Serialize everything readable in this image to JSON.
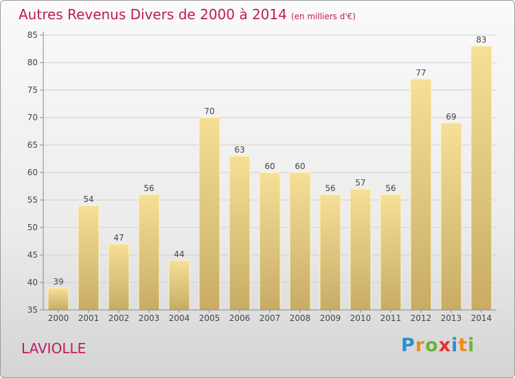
{
  "header": {
    "title": "Autres Revenus Divers de 2000 à 2014",
    "unit": "(en milliers d'€)"
  },
  "footer": {
    "place": "LAVIOLLE",
    "logo_letters": [
      "P",
      "r",
      "o",
      "x",
      "i",
      "t",
      "i"
    ],
    "logo_colors": [
      "#2a8fd4",
      "#f08a1c",
      "#6bb33a",
      "#e52e2e",
      "#2a8fd4",
      "#f08a1c",
      "#6bb33a"
    ]
  },
  "chart_data": {
    "type": "bar",
    "title": "Autres Revenus Divers de 2000 à 2014",
    "xlabel": "",
    "ylabel": "",
    "categories": [
      "2000",
      "2001",
      "2002",
      "2003",
      "2004",
      "2005",
      "2006",
      "2007",
      "2008",
      "2009",
      "2010",
      "2011",
      "2012",
      "2013",
      "2014"
    ],
    "values": [
      39,
      54,
      47,
      56,
      44,
      70,
      63,
      60,
      60,
      56,
      57,
      56,
      77,
      69,
      83
    ],
    "ylim": [
      35,
      85
    ],
    "yticks": [
      35,
      40,
      45,
      50,
      55,
      60,
      65,
      70,
      75,
      80,
      85
    ],
    "grid": true,
    "bar_color_top": "#f6df96",
    "bar_color_bottom": "#c8ac66"
  }
}
